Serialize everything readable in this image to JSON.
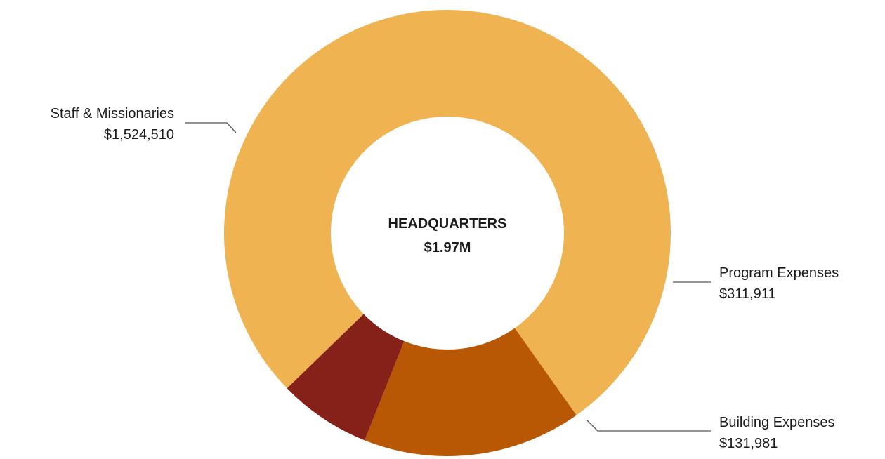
{
  "chart_data": {
    "type": "pie",
    "style": "donut",
    "center": {
      "title": "HEADQUARTERS",
      "total": "$1.97M"
    },
    "slices": [
      {
        "name": "Staff & Missionaries",
        "value": 1524510,
        "value_label": "$1,524,510",
        "color": "#EFB351"
      },
      {
        "name": "Program Expenses",
        "value": 311911,
        "value_label": "$311,911",
        "color": "#B85805"
      },
      {
        "name": "Building Expenses",
        "value": 131981,
        "value_label": "$131,981",
        "color": "#86211A"
      }
    ]
  }
}
